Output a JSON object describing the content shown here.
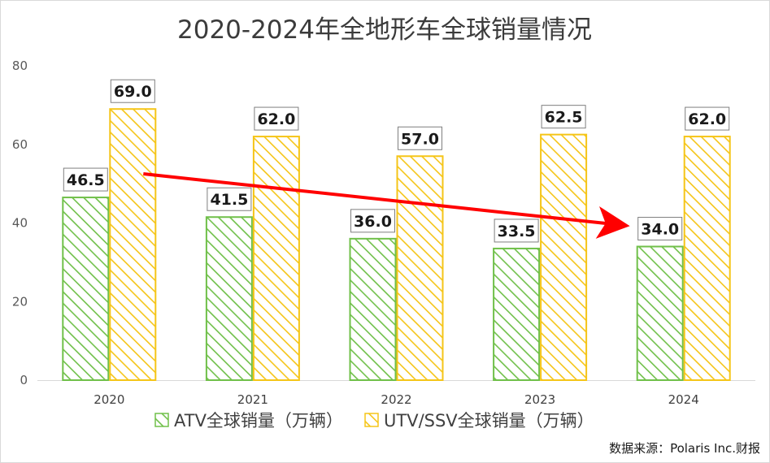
{
  "chart_data": {
    "type": "bar",
    "title": "2020-2024年全地形车全球销量情况",
    "categories": [
      "2020",
      "2021",
      "2022",
      "2023",
      "2024"
    ],
    "series": [
      {
        "name": "ATV全球销量（万辆）",
        "values": [
          46.5,
          41.5,
          36.0,
          33.5,
          34.0
        ],
        "labels": [
          "46.5",
          "41.5",
          "36.0",
          "33.5",
          "34.0"
        ],
        "color": "#70c04a"
      },
      {
        "name": "UTV/SSV全球销量（万辆）",
        "values": [
          69.0,
          62.0,
          57.0,
          62.5,
          62.0
        ],
        "labels": [
          "69.0",
          "62.0",
          "57.0",
          "62.5",
          "62.0"
        ],
        "color": "#f5c518"
      }
    ],
    "yticks": [
      "0",
      "20",
      "40",
      "60",
      "80"
    ],
    "ylim": [
      0,
      80
    ],
    "xlabel": "",
    "ylabel": "",
    "grid": false,
    "legend_position": "bottom",
    "annotation": {
      "type": "trend-arrow",
      "color": "#ff0000",
      "from": {
        "category": "2020",
        "value": 52.5
      },
      "to": {
        "category": "2024",
        "value": 39.5
      }
    },
    "source": "数据来源：Polaris Inc.财报"
  }
}
